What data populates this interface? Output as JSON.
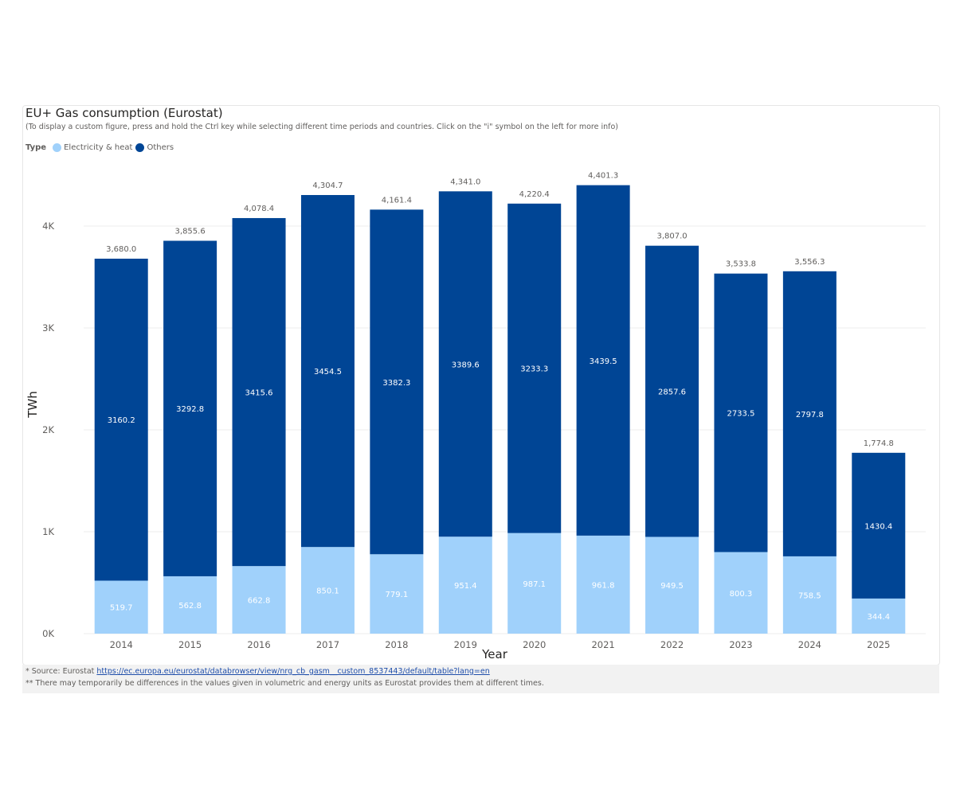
{
  "title": "EU+ Gas consumption (Eurostat)",
  "subtitle": "(To display a custom figure, press and hold the Ctrl key while selecting different time periods and countries. Click on the \"i\" symbol on the left for more info)",
  "legend": {
    "title": "Type",
    "items": [
      {
        "label": "Electricity & heat",
        "color": "#a0d1fb"
      },
      {
        "label": "Others",
        "color": "#004595"
      }
    ]
  },
  "footer": {
    "line1_prefix": "*   Source: Eurostat ",
    "line1_link": "https://ec.europa.eu/eurostat/databrowser/view/nrg_cb_gasm__custom_8537443/default/table?lang=en",
    "line2": "** There may temporarily be differences in the values given in volumetric and energy units as Eurostat provides them at different times."
  },
  "chart_data": {
    "type": "bar",
    "stacked": true,
    "xlabel": "Year",
    "ylabel": "TWh",
    "ylim": [
      0,
      4500
    ],
    "yticks": [
      0,
      1000,
      2000,
      3000,
      4000
    ],
    "ytick_labels": [
      "0K",
      "1K",
      "2K",
      "3K",
      "4K"
    ],
    "grid": true,
    "legend_position": "top-left",
    "categories": [
      "2014",
      "2015",
      "2016",
      "2017",
      "2018",
      "2019",
      "2020",
      "2021",
      "2022",
      "2023",
      "2024",
      "2025"
    ],
    "series": [
      {
        "name": "Electricity & heat",
        "color": "#a0d1fb",
        "values": [
          519.7,
          562.8,
          662.8,
          850.1,
          779.1,
          951.4,
          987.1,
          961.8,
          949.5,
          800.3,
          758.5,
          344.4
        ]
      },
      {
        "name": "Others",
        "color": "#004595",
        "values": [
          3160.2,
          3292.8,
          3415.6,
          3454.5,
          3382.3,
          3389.6,
          3233.3,
          3439.5,
          2857.6,
          2733.5,
          2797.8,
          1430.4
        ]
      }
    ],
    "totals": [
      "3,680.0",
      "3,855.6",
      "4,078.4",
      "4,304.7",
      "4,161.4",
      "4,341.0",
      "4,220.4",
      "4,401.3",
      "3,807.0",
      "3,533.8",
      "3,556.3",
      "1,774.8"
    ]
  }
}
